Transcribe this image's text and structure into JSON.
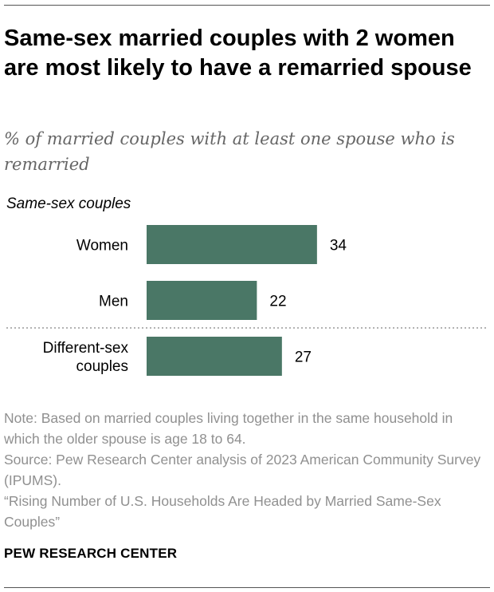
{
  "title": "Same-sex married couples with 2 women are most likely to have a remarried spouse",
  "subtitle": "% of married couples with at least one spouse who is remarried",
  "group_label": "Same-sex couples",
  "note": "Note: Based on married couples living together in the same household in which the older spouse is age 18 to 64.",
  "source": "Source: Pew Research Center analysis of 2023 American Community Survey (IPUMS).",
  "report": "“Rising Number of U.S. Households Are Headed by Married Same-Sex Couples”",
  "brand": "PEW RESEARCH CENTER",
  "colors": {
    "bar": "#4a7766",
    "divider": "#999999"
  },
  "chart_data": {
    "type": "bar",
    "orientation": "horizontal",
    "categories": [
      {
        "lines": [
          "Women"
        ],
        "group": "Same-sex couples"
      },
      {
        "lines": [
          "Men"
        ],
        "group": "Same-sex couples"
      },
      {
        "lines": [
          "Different-sex",
          "couples"
        ],
        "group": ""
      }
    ],
    "values": [
      34,
      22,
      27
    ],
    "unit": "%",
    "xlim": [
      0,
      40
    ],
    "grid": false,
    "legend": "none"
  }
}
